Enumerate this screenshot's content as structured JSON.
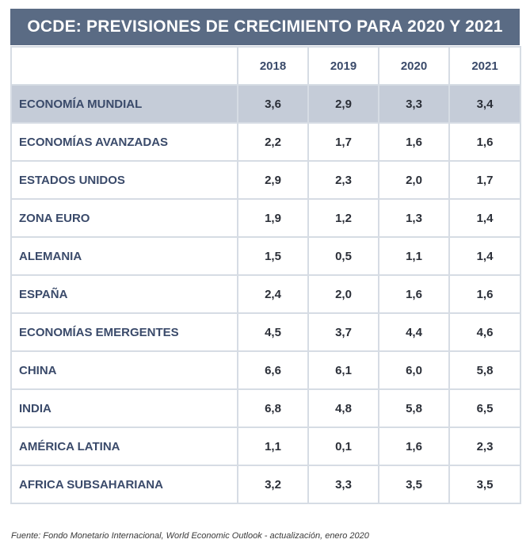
{
  "title": "OCDE: PREVISIONES DE CRECIMIENTO PARA 2020 Y 2021",
  "source": "Fuente: Fondo Monetario Internacional, World Economic Outlook - actualización, enero 2020",
  "colors": {
    "header": "#5a6b84",
    "highlight_row": "#c5ccd8",
    "text": "#3a4a6a"
  },
  "chart_data": {
    "type": "table",
    "title": "OCDE: PREVISIONES DE CRECIMIENTO PARA 2020 Y 2021",
    "columns": [
      "",
      "2018",
      "2019",
      "2020",
      "2021"
    ],
    "rows": [
      {
        "label": "ECONOMÍA MUNDIAL",
        "values": [
          "3,6",
          "2,9",
          "3,3",
          "3,4"
        ],
        "highlight": true
      },
      {
        "label": "ECONOMÍAS AVANZADAS",
        "values": [
          "2,2",
          "1,7",
          "1,6",
          "1,6"
        ]
      },
      {
        "label": "ESTADOS UNIDOS",
        "values": [
          "2,9",
          "2,3",
          "2,0",
          "1,7"
        ]
      },
      {
        "label": "ZONA EURO",
        "values": [
          "1,9",
          "1,2",
          "1,3",
          "1,4"
        ]
      },
      {
        "label": "ALEMANIA",
        "values": [
          "1,5",
          "0,5",
          "1,1",
          "1,4"
        ]
      },
      {
        "label": "ESPAÑA",
        "values": [
          "2,4",
          "2,0",
          "1,6",
          "1,6"
        ]
      },
      {
        "label": "ECONOMÍAS EMERGENTES",
        "values": [
          "4,5",
          "3,7",
          "4,4",
          "4,6"
        ]
      },
      {
        "label": "CHINA",
        "values": [
          "6,6",
          "6,1",
          "6,0",
          "5,8"
        ]
      },
      {
        "label": "INDIA",
        "values": [
          "6,8",
          "4,8",
          "5,8",
          "6,5"
        ]
      },
      {
        "label": "AMÉRICA LATINA",
        "values": [
          "1,1",
          "0,1",
          "1,6",
          "2,3"
        ]
      },
      {
        "label": "AFRICA SUBSAHARIANA",
        "values": [
          "3,2",
          "3,3",
          "3,5",
          "3,5"
        ]
      }
    ]
  }
}
